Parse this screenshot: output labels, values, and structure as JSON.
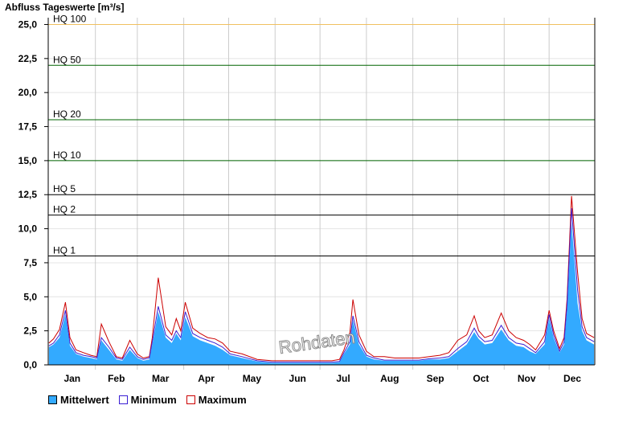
{
  "chart_data": {
    "type": "area",
    "title": "Abfluss Tageswerte [m³/s]",
    "ylim": [
      0,
      25.5
    ],
    "yticks": [
      "0,0",
      "2,5",
      "5,0",
      "7,5",
      "10,0",
      "12,5",
      "15,0",
      "17,5",
      "20,0",
      "22,5",
      "25,0"
    ],
    "ytick_values": [
      0,
      2.5,
      5,
      7.5,
      10,
      12.5,
      15,
      17.5,
      20,
      22.5,
      25
    ],
    "months": [
      "Jan",
      "Feb",
      "Mar",
      "Apr",
      "May",
      "Jun",
      "Jul",
      "Aug",
      "Sep",
      "Oct",
      "Nov",
      "Dec"
    ],
    "grid": true,
    "legend_position": "bottom-left",
    "thresholds": [
      {
        "label": "HQ 100",
        "value": 25.0,
        "color": "#f0c060"
      },
      {
        "label": "HQ 50",
        "value": 22.0,
        "color": "#006400"
      },
      {
        "label": "HQ 20",
        "value": 18.0,
        "color": "#006400"
      },
      {
        "label": "HQ 10",
        "value": 15.0,
        "color": "#006400"
      },
      {
        "label": "HQ 5",
        "value": 12.5,
        "color": "#000000"
      },
      {
        "label": "HQ 2",
        "value": 11.0,
        "color": "#000000"
      },
      {
        "label": "HQ 1",
        "value": 8.0,
        "color": "#000000"
      }
    ],
    "series": [
      {
        "name": "Mittelwert",
        "color": "#33aaff",
        "x": [
          1,
          4,
          8,
          12,
          15,
          19,
          24,
          29,
          33,
          36,
          41,
          46,
          50,
          55,
          60,
          64,
          68,
          70,
          74,
          79,
          83,
          86,
          89,
          92,
          97,
          102,
          107,
          112,
          117,
          122,
          130,
          140,
          150,
          160,
          168,
          175,
          182,
          190,
          195,
          198,
          202,
          204,
          208,
          213,
          218,
          225,
          232,
          240,
          248,
          255,
          262,
          268,
          274,
          280,
          285,
          288,
          292,
          297,
          303,
          308,
          313,
          318,
          322,
          326,
          332,
          335,
          338,
          342,
          345,
          347,
          350,
          354,
          357,
          360,
          365
        ],
        "values": [
          1.3,
          1.5,
          2.0,
          3.7,
          1.4,
          0.8,
          0.6,
          0.5,
          0.4,
          1.8,
          1.1,
          0.4,
          0.3,
          1.1,
          0.5,
          0.3,
          0.4,
          1.5,
          3.9,
          2.0,
          1.6,
          2.3,
          1.8,
          3.5,
          2.1,
          1.8,
          1.6,
          1.4,
          1.1,
          0.7,
          0.5,
          0.25,
          0.15,
          0.15,
          0.15,
          0.15,
          0.15,
          0.15,
          0.2,
          0.8,
          1.5,
          3.3,
          1.5,
          0.6,
          0.4,
          0.3,
          0.3,
          0.3,
          0.3,
          0.4,
          0.4,
          0.5,
          1.0,
          1.5,
          2.4,
          1.9,
          1.5,
          1.6,
          2.6,
          1.8,
          1.4,
          1.3,
          1.0,
          0.8,
          1.5,
          3.4,
          2.0,
          0.9,
          1.5,
          4.0,
          10.5,
          4.5,
          2.5,
          1.8,
          1.5
        ]
      },
      {
        "name": "Minimum",
        "color": "#3a1fd4",
        "x": [
          1,
          4,
          8,
          12,
          15,
          19,
          24,
          29,
          33,
          36,
          41,
          46,
          50,
          55,
          60,
          64,
          68,
          70,
          74,
          79,
          83,
          86,
          89,
          92,
          97,
          102,
          107,
          112,
          117,
          122,
          130,
          140,
          150,
          160,
          168,
          175,
          182,
          190,
          195,
          198,
          202,
          204,
          208,
          213,
          218,
          225,
          232,
          240,
          248,
          255,
          262,
          268,
          274,
          280,
          285,
          288,
          292,
          297,
          303,
          308,
          313,
          318,
          322,
          326,
          332,
          335,
          338,
          342,
          345,
          347,
          350,
          354,
          357,
          360,
          365
        ],
        "values": [
          1.4,
          1.6,
          2.2,
          4.0,
          1.6,
          0.9,
          0.7,
          0.6,
          0.5,
          2.0,
          1.3,
          0.5,
          0.4,
          1.3,
          0.6,
          0.4,
          0.5,
          1.7,
          4.3,
          2.2,
          1.8,
          2.5,
          2.0,
          3.9,
          2.3,
          2.0,
          1.8,
          1.6,
          1.3,
          0.8,
          0.6,
          0.3,
          0.2,
          0.2,
          0.2,
          0.2,
          0.2,
          0.2,
          0.25,
          0.9,
          1.7,
          3.6,
          1.7,
          0.7,
          0.5,
          0.35,
          0.35,
          0.35,
          0.35,
          0.45,
          0.5,
          0.6,
          1.2,
          1.7,
          2.7,
          2.1,
          1.7,
          1.8,
          2.9,
          2.0,
          1.6,
          1.5,
          1.2,
          0.9,
          1.7,
          3.7,
          2.2,
          1.0,
          1.7,
          4.4,
          11.5,
          5.5,
          2.8,
          2.0,
          1.7
        ]
      },
      {
        "name": "Maximum",
        "color": "#cc0000",
        "x": [
          1,
          4,
          8,
          12,
          15,
          19,
          24,
          29,
          33,
          36,
          41,
          46,
          50,
          55,
          60,
          64,
          68,
          70,
          74,
          79,
          83,
          86,
          89,
          92,
          97,
          102,
          107,
          112,
          117,
          122,
          130,
          140,
          150,
          160,
          168,
          175,
          182,
          190,
          195,
          198,
          202,
          204,
          208,
          213,
          218,
          225,
          232,
          240,
          248,
          255,
          262,
          268,
          274,
          280,
          285,
          288,
          292,
          297,
          303,
          308,
          313,
          318,
          322,
          326,
          332,
          335,
          338,
          342,
          345,
          347,
          350,
          354,
          357,
          360,
          365
        ],
        "values": [
          1.6,
          1.9,
          2.6,
          4.6,
          2.0,
          1.1,
          0.9,
          0.7,
          0.6,
          3.0,
          1.7,
          0.6,
          0.5,
          1.8,
          0.8,
          0.5,
          0.6,
          2.0,
          6.4,
          2.8,
          2.2,
          3.4,
          2.5,
          4.6,
          2.7,
          2.3,
          2.0,
          1.9,
          1.6,
          1.0,
          0.8,
          0.4,
          0.3,
          0.3,
          0.3,
          0.3,
          0.3,
          0.3,
          0.4,
          1.1,
          2.4,
          4.8,
          2.2,
          1.0,
          0.6,
          0.6,
          0.5,
          0.5,
          0.5,
          0.6,
          0.7,
          0.9,
          1.8,
          2.2,
          3.6,
          2.5,
          2.0,
          2.2,
          3.8,
          2.5,
          2.0,
          1.8,
          1.5,
          1.1,
          2.2,
          4.0,
          2.5,
          1.2,
          2.0,
          4.8,
          12.4,
          6.8,
          3.4,
          2.3,
          2.0
        ]
      }
    ],
    "annotations": [
      "Rohdaten"
    ]
  }
}
